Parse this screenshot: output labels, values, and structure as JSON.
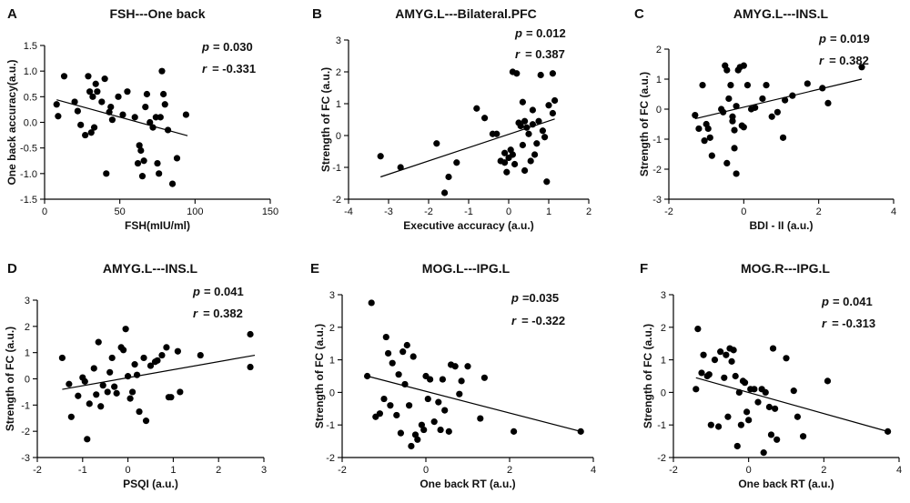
{
  "figure": {
    "background": "#ffffff",
    "ink": "#000000"
  },
  "chart_data": [
    {
      "panel": "A",
      "type": "scatter",
      "title": "FSH---One back",
      "xlabel": "FSH(mIU/ml)",
      "ylabel": "One back accuracy(a.u.)",
      "xlim": [
        0,
        150
      ],
      "ylim": [
        -1.5,
        1.5
      ],
      "xticks": [
        0,
        50,
        100,
        150
      ],
      "xtick_labels": [
        "0",
        "50",
        "100",
        "150"
      ],
      "yticks": [
        -1.5,
        -1.0,
        -0.5,
        0.0,
        0.5,
        1.0,
        1.5
      ],
      "ytick_labels": [
        "-1.5",
        "-1.0",
        "-0.5",
        "0.0",
        "0.5",
        "1.0",
        "1.5"
      ],
      "p_label": "p",
      "p_value": "= 0.030",
      "r_label": "r",
      "r_value": "= -0.331",
      "fit": [
        [
          8,
          0.44
        ],
        [
          95,
          -0.26
        ]
      ],
      "points": [
        [
          8,
          0.35
        ],
        [
          9,
          0.12
        ],
        [
          13,
          0.9
        ],
        [
          20,
          0.4
        ],
        [
          22,
          0.22
        ],
        [
          24,
          -0.05
        ],
        [
          27,
          -0.25
        ],
        [
          29,
          0.9
        ],
        [
          30,
          0.6
        ],
        [
          31,
          -0.2
        ],
        [
          32,
          0.5
        ],
        [
          33,
          -0.1
        ],
        [
          34,
          0.75
        ],
        [
          35,
          0.6
        ],
        [
          38,
          0.4
        ],
        [
          40,
          0.85
        ],
        [
          41,
          -1.0
        ],
        [
          43,
          0.2
        ],
        [
          44,
          0.3
        ],
        [
          45,
          0.05
        ],
        [
          49,
          0.5
        ],
        [
          52,
          0.15
        ],
        [
          55,
          0.6
        ],
        [
          60,
          0.1
        ],
        [
          62,
          -0.8
        ],
        [
          63,
          -0.45
        ],
        [
          64,
          -0.55
        ],
        [
          65,
          -1.05
        ],
        [
          66,
          -0.75
        ],
        [
          67,
          0.3
        ],
        [
          68,
          0.55
        ],
        [
          70,
          0.0
        ],
        [
          72,
          -0.1
        ],
        [
          74,
          0.1
        ],
        [
          75,
          -0.8
        ],
        [
          76,
          -1.0
        ],
        [
          77,
          0.1
        ],
        [
          78,
          1.0
        ],
        [
          79,
          0.55
        ],
        [
          80,
          0.35
        ],
        [
          82,
          -0.15
        ],
        [
          85,
          -1.2
        ],
        [
          88,
          -0.7
        ],
        [
          94,
          0.15
        ]
      ]
    },
    {
      "panel": "B",
      "type": "scatter",
      "title": "AMYG.L---Bilateral.PFC",
      "xlabel": "Executive accuracy (a.u.)",
      "ylabel": "Strength of FC (a.u.)",
      "xlim": [
        -4,
        2
      ],
      "ylim": [
        -2,
        3
      ],
      "xticks": [
        -4,
        -3,
        -2,
        -1,
        0,
        1,
        2
      ],
      "xtick_labels": [
        "-4",
        "-3",
        "-2",
        "-1",
        "0",
        "1",
        "2"
      ],
      "yticks": [
        -2,
        -1,
        0,
        1,
        2,
        3
      ],
      "ytick_labels": [
        "-2",
        "-1",
        "0",
        "1",
        "2",
        "3"
      ],
      "p_label": "p",
      "p_value": "= 0.012",
      "r_label": "r",
      "r_value": "= 0.387",
      "fit": [
        [
          -3.2,
          -1.3
        ],
        [
          1.15,
          0.52
        ]
      ],
      "points": [
        [
          -3.2,
          -0.65
        ],
        [
          -2.7,
          -1.0
        ],
        [
          -1.8,
          -0.25
        ],
        [
          -1.6,
          -1.8
        ],
        [
          -1.5,
          -1.3
        ],
        [
          -1.3,
          -0.85
        ],
        [
          -0.8,
          0.85
        ],
        [
          -0.6,
          0.55
        ],
        [
          -0.4,
          0.05
        ],
        [
          -0.3,
          0.05
        ],
        [
          -0.2,
          -0.8
        ],
        [
          -0.1,
          -0.85
        ],
        [
          -0.1,
          -0.55
        ],
        [
          -0.05,
          -1.15
        ],
        [
          0.0,
          -0.7
        ],
        [
          0.05,
          -0.45
        ],
        [
          0.1,
          -0.6
        ],
        [
          0.1,
          2.0
        ],
        [
          0.15,
          -0.9
        ],
        [
          0.2,
          1.95
        ],
        [
          0.25,
          0.4
        ],
        [
          0.3,
          0.3
        ],
        [
          0.35,
          1.05
        ],
        [
          0.35,
          -0.3
        ],
        [
          0.4,
          0.45
        ],
        [
          0.4,
          -1.1
        ],
        [
          0.45,
          0.25
        ],
        [
          0.5,
          0.05
        ],
        [
          0.55,
          -0.8
        ],
        [
          0.6,
          0.8
        ],
        [
          0.6,
          0.35
        ],
        [
          0.65,
          -0.6
        ],
        [
          0.7,
          -0.25
        ],
        [
          0.75,
          0.45
        ],
        [
          0.8,
          1.9
        ],
        [
          0.85,
          0.15
        ],
        [
          0.9,
          -0.05
        ],
        [
          0.95,
          -1.45
        ],
        [
          1.0,
          0.95
        ],
        [
          1.1,
          1.95
        ],
        [
          1.15,
          1.1
        ],
        [
          1.1,
          0.7
        ]
      ]
    },
    {
      "panel": "C",
      "type": "scatter",
      "title": "AMYG.L---INS.L",
      "xlabel": "BDI - II (a.u.)",
      "ylabel": "Strength of FC (a.u.)",
      "xlim": [
        -2,
        4
      ],
      "ylim": [
        -3,
        2
      ],
      "xticks": [
        -2,
        0,
        2,
        4
      ],
      "xtick_labels": [
        "-2",
        "0",
        "2",
        "4"
      ],
      "yticks": [
        -3,
        -2,
        -1,
        0,
        1,
        2
      ],
      "ytick_labels": [
        "-3",
        "-2",
        "-1",
        "0",
        "1",
        "2"
      ],
      "p_label": "p",
      "p_value": "= 0.019",
      "r_label": "r",
      "r_value": "= 0.382",
      "fit": [
        [
          -1.3,
          -0.32
        ],
        [
          3.15,
          1.0
        ]
      ],
      "points": [
        [
          -1.3,
          -0.2
        ],
        [
          -1.2,
          -0.65
        ],
        [
          -1.1,
          0.8
        ],
        [
          -1.05,
          -1.05
        ],
        [
          -1.0,
          -0.5
        ],
        [
          -0.95,
          -0.65
        ],
        [
          -0.9,
          -0.95
        ],
        [
          -0.85,
          -1.55
        ],
        [
          -0.6,
          0.0
        ],
        [
          -0.55,
          -0.1
        ],
        [
          -0.5,
          1.45
        ],
        [
          -0.45,
          1.3
        ],
        [
          -0.45,
          -1.8
        ],
        [
          -0.4,
          0.35
        ],
        [
          -0.35,
          0.8
        ],
        [
          -0.3,
          -0.25
        ],
        [
          -0.3,
          -0.4
        ],
        [
          -0.25,
          -0.7
        ],
        [
          -0.25,
          -1.3
        ],
        [
          -0.2,
          0.1
        ],
        [
          -0.2,
          -2.15
        ],
        [
          -0.15,
          1.3
        ],
        [
          -0.1,
          1.4
        ],
        [
          -0.05,
          -0.55
        ],
        [
          0.0,
          1.45
        ],
        [
          0.0,
          -0.6
        ],
        [
          0.1,
          0.8
        ],
        [
          0.2,
          0.0
        ],
        [
          0.3,
          0.05
        ],
        [
          0.5,
          0.35
        ],
        [
          0.6,
          0.8
        ],
        [
          0.75,
          -0.25
        ],
        [
          0.9,
          -0.1
        ],
        [
          1.05,
          -0.95
        ],
        [
          1.1,
          0.3
        ],
        [
          1.3,
          0.45
        ],
        [
          1.7,
          0.85
        ],
        [
          2.1,
          0.7
        ],
        [
          2.25,
          0.2
        ],
        [
          3.15,
          1.4
        ]
      ]
    },
    {
      "panel": "D",
      "type": "scatter",
      "title": "AMYG.L---INS.L",
      "xlabel": "PSQI (a.u.)",
      "ylabel": "Strength of FC (a.u.)",
      "xlim": [
        -2,
        3
      ],
      "ylim": [
        -3,
        3
      ],
      "xticks": [
        -2,
        -1,
        0,
        1,
        2,
        3
      ],
      "xtick_labels": [
        "-2",
        "-1",
        "0",
        "1",
        "2",
        "3"
      ],
      "yticks": [
        -3,
        -2,
        -1,
        0,
        1,
        2,
        3
      ],
      "ytick_labels": [
        "-3",
        "-2",
        "-1",
        "0",
        "1",
        "2",
        "3"
      ],
      "p_label": "p",
      "p_value": "= 0.041",
      "r_label": "r",
      "r_value": "= 0.382",
      "fit": [
        [
          -1.45,
          -0.4
        ],
        [
          2.8,
          0.9
        ]
      ],
      "points": [
        [
          -1.45,
          0.8
        ],
        [
          -1.3,
          -0.2
        ],
        [
          -1.25,
          -1.45
        ],
        [
          -1.1,
          -0.65
        ],
        [
          -1.0,
          0.05
        ],
        [
          -0.95,
          -0.1
        ],
        [
          -0.9,
          -2.3
        ],
        [
          -0.85,
          -0.95
        ],
        [
          -0.75,
          0.4
        ],
        [
          -0.7,
          -0.6
        ],
        [
          -0.65,
          1.4
        ],
        [
          -0.6,
          -1.05
        ],
        [
          -0.55,
          -0.25
        ],
        [
          -0.45,
          -0.5
        ],
        [
          -0.4,
          0.25
        ],
        [
          -0.35,
          0.8
        ],
        [
          -0.3,
          -0.3
        ],
        [
          -0.25,
          -0.55
        ],
        [
          -0.15,
          1.2
        ],
        [
          -0.1,
          1.1
        ],
        [
          -0.05,
          1.9
        ],
        [
          0.0,
          0.1
        ],
        [
          0.05,
          -0.75
        ],
        [
          0.1,
          -0.5
        ],
        [
          0.15,
          0.55
        ],
        [
          0.2,
          0.15
        ],
        [
          0.25,
          -1.25
        ],
        [
          0.35,
          0.8
        ],
        [
          0.4,
          -1.6
        ],
        [
          0.5,
          0.5
        ],
        [
          0.6,
          0.65
        ],
        [
          0.65,
          0.7
        ],
        [
          0.75,
          0.9
        ],
        [
          0.85,
          1.2
        ],
        [
          0.9,
          -0.7
        ],
        [
          0.95,
          -0.7
        ],
        [
          1.1,
          1.05
        ],
        [
          1.15,
          -0.5
        ],
        [
          1.6,
          0.9
        ],
        [
          2.7,
          1.7
        ],
        [
          2.7,
          0.45
        ]
      ]
    },
    {
      "panel": "E",
      "type": "scatter",
      "title": "MOG.L---IPG.L",
      "xlabel": "One back RT (a.u.)",
      "ylabel": "Strength of FC (a.u.)",
      "xlim": [
        -2,
        4
      ],
      "ylim": [
        -2,
        3
      ],
      "xticks": [
        -2,
        0,
        2,
        4
      ],
      "xtick_labels": [
        "-2",
        "0",
        "2",
        "4"
      ],
      "yticks": [
        -2,
        -1,
        0,
        1,
        2,
        3
      ],
      "ytick_labels": [
        "-2",
        "-1",
        "0",
        "1",
        "2",
        "3"
      ],
      "p_label": "p",
      "p_value": "=0.035",
      "r_label": "r",
      "r_value": "= -0.322",
      "fit": [
        [
          -1.4,
          0.5
        ],
        [
          3.7,
          -1.2
        ]
      ],
      "points": [
        [
          -1.4,
          0.5
        ],
        [
          -1.3,
          2.75
        ],
        [
          -1.2,
          -0.75
        ],
        [
          -1.1,
          -0.65
        ],
        [
          -1.0,
          -0.2
        ],
        [
          -0.95,
          1.7
        ],
        [
          -0.9,
          1.2
        ],
        [
          -0.85,
          -0.4
        ],
        [
          -0.8,
          0.9
        ],
        [
          -0.7,
          -0.7
        ],
        [
          -0.65,
          0.55
        ],
        [
          -0.6,
          -1.25
        ],
        [
          -0.55,
          1.25
        ],
        [
          -0.5,
          0.25
        ],
        [
          -0.45,
          1.45
        ],
        [
          -0.4,
          -0.4
        ],
        [
          -0.35,
          -1.65
        ],
        [
          -0.3,
          1.1
        ],
        [
          -0.25,
          -1.3
        ],
        [
          -0.2,
          -1.45
        ],
        [
          -0.1,
          -1.0
        ],
        [
          -0.05,
          -1.15
        ],
        [
          0.0,
          0.5
        ],
        [
          0.05,
          -0.2
        ],
        [
          0.1,
          0.4
        ],
        [
          0.2,
          -0.9
        ],
        [
          0.3,
          -0.3
        ],
        [
          0.35,
          -1.15
        ],
        [
          0.4,
          0.4
        ],
        [
          0.45,
          -0.55
        ],
        [
          0.55,
          -1.2
        ],
        [
          0.6,
          0.85
        ],
        [
          0.7,
          0.8
        ],
        [
          0.8,
          -0.05
        ],
        [
          0.85,
          0.35
        ],
        [
          1.0,
          0.8
        ],
        [
          1.3,
          -0.8
        ],
        [
          1.4,
          0.45
        ],
        [
          2.1,
          -1.2
        ],
        [
          3.7,
          -1.2
        ]
      ]
    },
    {
      "panel": "F",
      "type": "scatter",
      "title": "MOG.R---IPG.L",
      "xlabel": "One back RT (a.u.)",
      "ylabel": "Strength of FC (a.u.)",
      "xlim": [
        -2,
        4
      ],
      "ylim": [
        -2,
        3
      ],
      "xticks": [
        -2,
        0,
        2,
        4
      ],
      "xtick_labels": [
        "-2",
        "0",
        "2",
        "4"
      ],
      "yticks": [
        -2,
        -1,
        0,
        1,
        2,
        3
      ],
      "ytick_labels": [
        "-2",
        "-1",
        "0",
        "1",
        "2",
        "3"
      ],
      "p_label": "p",
      "p_value": "= 0.041",
      "r_label": "r",
      "r_value": "= -0.313",
      "fit": [
        [
          -1.4,
          0.45
        ],
        [
          3.7,
          -1.2
        ]
      ],
      "points": [
        [
          -1.4,
          0.1
        ],
        [
          -1.35,
          1.95
        ],
        [
          -1.25,
          0.6
        ],
        [
          -1.2,
          1.15
        ],
        [
          -1.1,
          0.5
        ],
        [
          -1.05,
          0.55
        ],
        [
          -1.0,
          -1.0
        ],
        [
          -0.9,
          1.0
        ],
        [
          -0.8,
          -1.05
        ],
        [
          -0.75,
          1.25
        ],
        [
          -0.65,
          0.45
        ],
        [
          -0.6,
          1.15
        ],
        [
          -0.55,
          -0.75
        ],
        [
          -0.5,
          1.35
        ],
        [
          -0.45,
          0.95
        ],
        [
          -0.4,
          1.3
        ],
        [
          -0.35,
          0.5
        ],
        [
          -0.3,
          -1.65
        ],
        [
          -0.25,
          0.0
        ],
        [
          -0.2,
          -1.0
        ],
        [
          -0.15,
          0.35
        ],
        [
          -0.1,
          0.3
        ],
        [
          -0.05,
          -0.6
        ],
        [
          0.0,
          -0.85
        ],
        [
          0.05,
          0.1
        ],
        [
          0.15,
          0.1
        ],
        [
          0.25,
          -0.3
        ],
        [
          0.35,
          0.1
        ],
        [
          0.4,
          -1.85
        ],
        [
          0.45,
          0.0
        ],
        [
          0.55,
          -0.45
        ],
        [
          0.6,
          -1.3
        ],
        [
          0.65,
          1.35
        ],
        [
          0.7,
          -0.5
        ],
        [
          0.75,
          -1.45
        ],
        [
          1.0,
          1.05
        ],
        [
          1.2,
          0.05
        ],
        [
          1.3,
          -0.75
        ],
        [
          1.45,
          -1.35
        ],
        [
          2.1,
          0.35
        ],
        [
          3.7,
          -1.2
        ]
      ]
    }
  ]
}
